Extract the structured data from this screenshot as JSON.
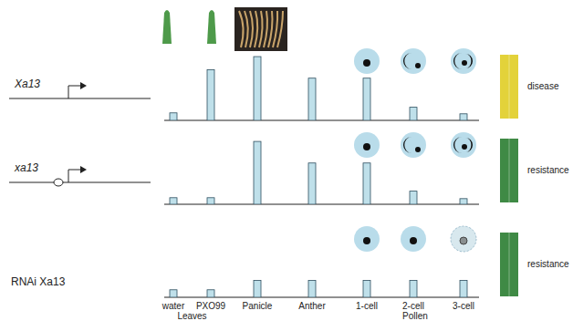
{
  "chart_data": [
    {
      "type": "bar",
      "title": "Xa13",
      "annotation": "disease",
      "color": "#bfe0ea",
      "categories": [
        null,
        null,
        null,
        null,
        null,
        null,
        null
      ],
      "values": [
        8,
        54,
        68,
        45,
        45,
        14,
        7
      ],
      "ylim": [
        0,
        70
      ],
      "tick_labels": false
    },
    {
      "type": "bar",
      "title": "xa13",
      "annotation": "resistance",
      "color": "#bfe0ea",
      "categories": [
        null,
        null,
        null,
        null,
        null,
        null,
        null
      ],
      "values": [
        7,
        7,
        67,
        44,
        44,
        14,
        6
      ],
      "ylim": [
        0,
        70
      ],
      "tick_labels": false
    },
    {
      "type": "bar",
      "title": "RNAi Xa13",
      "annotation": "resistance",
      "color": "#bfe0ea",
      "categories": [
        "water",
        "PXO99",
        "Panicle",
        "Anther",
        "1-cell",
        "2-cell",
        "3-cell"
      ],
      "groups": [
        {
          "label": "Leaves",
          "members": [
            "water",
            "PXO99"
          ]
        },
        {
          "label": "Pollen",
          "members": [
            "1-cell",
            "2-cell",
            "3-cell"
          ]
        }
      ],
      "values": [
        8,
        8,
        18,
        18,
        18,
        18,
        18
      ],
      "ylim": [
        0,
        70
      ],
      "tick_labels": "x"
    }
  ]
}
